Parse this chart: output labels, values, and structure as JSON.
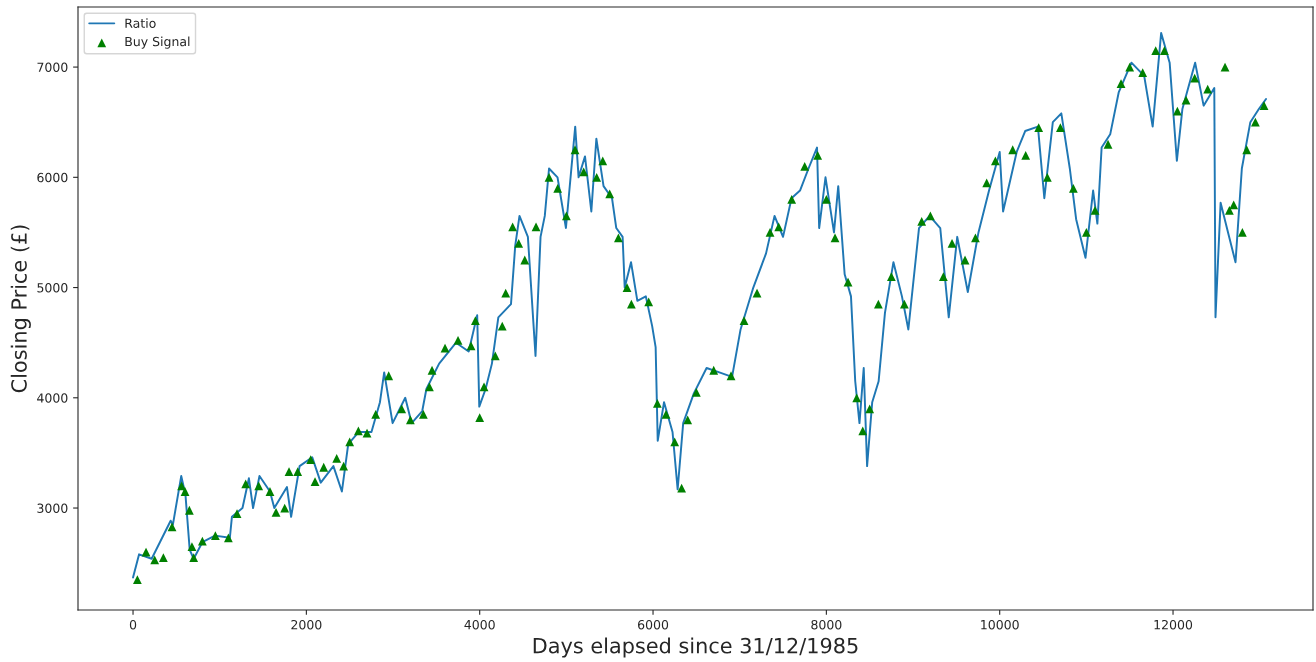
{
  "chart_data": {
    "type": "line",
    "xlabel": "Days elapsed since 31/12/1985",
    "ylabel": "Closing Price (£)",
    "xlim": [
      -635,
      13615
    ],
    "ylim": [
      2075,
      7545
    ],
    "xticks": [
      0,
      2000,
      4000,
      6000,
      8000,
      10000,
      12000
    ],
    "yticks": [
      3000,
      4000,
      5000,
      6000,
      7000
    ],
    "grid": false,
    "legend": "top left",
    "series": [
      {
        "name": "Ratio",
        "color": "#1f77b4",
        "marker": "none",
        "line_style": "solid",
        "x": [
          0,
          70,
          215,
          434,
          460,
          556,
          605,
          654,
          700,
          800,
          946,
          1117,
          1141,
          1263,
          1337,
          1385,
          1459,
          1580,
          1630,
          1776,
          1824,
          1922,
          2068,
          2166,
          2312,
          2410,
          2483,
          2605,
          2751,
          2849,
          2898,
          2995,
          3141,
          3215,
          3337,
          3385,
          3532,
          3727,
          3873,
          3971,
          3995,
          4068,
          4141,
          4215,
          4361,
          4410,
          4459,
          4556,
          4644,
          4702,
          4751,
          4800,
          4898,
          4995,
          5102,
          5141,
          5215,
          5288,
          5346,
          5429,
          5527,
          5576,
          5649,
          5673,
          5746,
          5819,
          5917,
          5990,
          6030,
          6054,
          6127,
          6225,
          6284,
          6348,
          6471,
          6618,
          6765,
          6912,
          7010,
          7157,
          7304,
          7402,
          7500,
          7598,
          7696,
          7794,
          7892,
          7917,
          7990,
          8088,
          8137,
          8211,
          8284,
          8333,
          8382,
          8431,
          8470,
          8529,
          8603,
          8676,
          8774,
          8872,
          8946,
          9069,
          9191,
          9314,
          9412,
          9510,
          9632,
          9755,
          9877,
          10000,
          10039,
          10196,
          10294,
          10441,
          10515,
          10613,
          10711,
          10809,
          10882,
          10990,
          11078,
          11127,
          11176,
          11275,
          11373,
          11520,
          11667,
          11765,
          11863,
          11961,
          12044,
          12108,
          12255,
          12353,
          12476,
          12490,
          12549,
          12647,
          12721,
          12794,
          12892,
          12990,
          13073
        ],
        "values": [
          2370,
          2580,
          2540,
          2885,
          2850,
          3290,
          3120,
          2620,
          2540,
          2690,
          2750,
          2730,
          2920,
          3000,
          3270,
          3000,
          3290,
          3150,
          3000,
          3190,
          2920,
          3380,
          3460,
          3230,
          3380,
          3150,
          3580,
          3690,
          3690,
          3960,
          4230,
          3770,
          4000,
          3770,
          3880,
          4080,
          4310,
          4500,
          4420,
          4750,
          3920,
          4080,
          4310,
          4730,
          4850,
          5380,
          5650,
          5460,
          4380,
          5460,
          5650,
          6080,
          6000,
          5540,
          6460,
          6000,
          6190,
          5690,
          6350,
          5920,
          5810,
          5540,
          5460,
          5000,
          5230,
          4880,
          4920,
          4650,
          4460,
          3610,
          3960,
          3690,
          3170,
          3770,
          4040,
          4270,
          4230,
          4190,
          4620,
          5000,
          5310,
          5650,
          5460,
          5810,
          5880,
          6080,
          6270,
          5540,
          6000,
          5500,
          5920,
          5120,
          4920,
          4150,
          3770,
          4270,
          3380,
          3960,
          4150,
          4770,
          5230,
          4920,
          4620,
          5540,
          5650,
          5540,
          4730,
          5460,
          4960,
          5500,
          5880,
          6230,
          5690,
          6230,
          6420,
          6460,
          5810,
          6500,
          6580,
          6080,
          5620,
          5270,
          5880,
          5580,
          6270,
          6390,
          6770,
          7040,
          6920,
          6460,
          7310,
          7040,
          6150,
          6620,
          7040,
          6650,
          6810,
          4730,
          5770,
          5460,
          5230,
          6080,
          6500,
          6620,
          6710
        ]
      },
      {
        "name": "Buy Signal",
        "type": "scatter",
        "color": "#008000",
        "marker": "triangle",
        "x": [
          50,
          150,
          250,
          350,
          450,
          560,
          600,
          650,
          680,
          700,
          800,
          950,
          1100,
          1200,
          1300,
          1450,
          1580,
          1650,
          1750,
          1800,
          1900,
          2050,
          2100,
          2200,
          2350,
          2430,
          2500,
          2600,
          2700,
          2800,
          2950,
          3100,
          3200,
          3350,
          3420,
          3450,
          3600,
          3750,
          3900,
          3950,
          4000,
          4050,
          4180,
          4260,
          4300,
          4380,
          4450,
          4520,
          4650,
          4800,
          4900,
          5000,
          5100,
          5200,
          5350,
          5420,
          5500,
          5600,
          5700,
          5750,
          5950,
          6050,
          6150,
          6250,
          6330,
          6400,
          6500,
          6700,
          6900,
          7050,
          7200,
          7350,
          7450,
          7600,
          7750,
          7900,
          8000,
          8100,
          8250,
          8350,
          8420,
          8500,
          8600,
          8750,
          8900,
          9100,
          9200,
          9350,
          9450,
          9600,
          9720,
          9850,
          9950,
          10150,
          10300,
          10450,
          10550,
          10700,
          10850,
          11000,
          11100,
          11250,
          11400,
          11500,
          11650,
          11800,
          11900,
          12050,
          12150,
          12250,
          12400,
          12600,
          12650,
          12700,
          12800,
          12850,
          12950,
          13050
        ],
        "values": [
          2350,
          2600,
          2530,
          2550,
          2830,
          3200,
          3150,
          2980,
          2650,
          2550,
          2700,
          2750,
          2730,
          2950,
          3220,
          3200,
          3150,
          2960,
          3000,
          3330,
          3330,
          3440,
          3240,
          3370,
          3450,
          3380,
          3600,
          3700,
          3680,
          3850,
          4200,
          3900,
          3800,
          3850,
          4100,
          4250,
          4450,
          4520,
          4470,
          4700,
          3820,
          4100,
          4380,
          4650,
          4950,
          5550,
          5400,
          5250,
          5550,
          6000,
          5900,
          5650,
          6250,
          6050,
          6000,
          6150,
          5850,
          5450,
          5000,
          4850,
          4870,
          3950,
          3850,
          3600,
          3180,
          3800,
          4050,
          4250,
          4200,
          4700,
          4950,
          5500,
          5550,
          5800,
          6100,
          6200,
          5800,
          5450,
          5050,
          4000,
          3700,
          3900,
          4850,
          5100,
          4850,
          5600,
          5650,
          5100,
          5400,
          5250,
          5450,
          5950,
          6150,
          6250,
          6200,
          6450,
          6000,
          6450,
          5900,
          5500,
          5700,
          6300,
          6850,
          7000,
          6950,
          7150,
          7150,
          6600,
          6700,
          6900,
          6800,
          7000,
          5700,
          5750,
          5500,
          6250,
          6500,
          6650
        ]
      }
    ]
  }
}
